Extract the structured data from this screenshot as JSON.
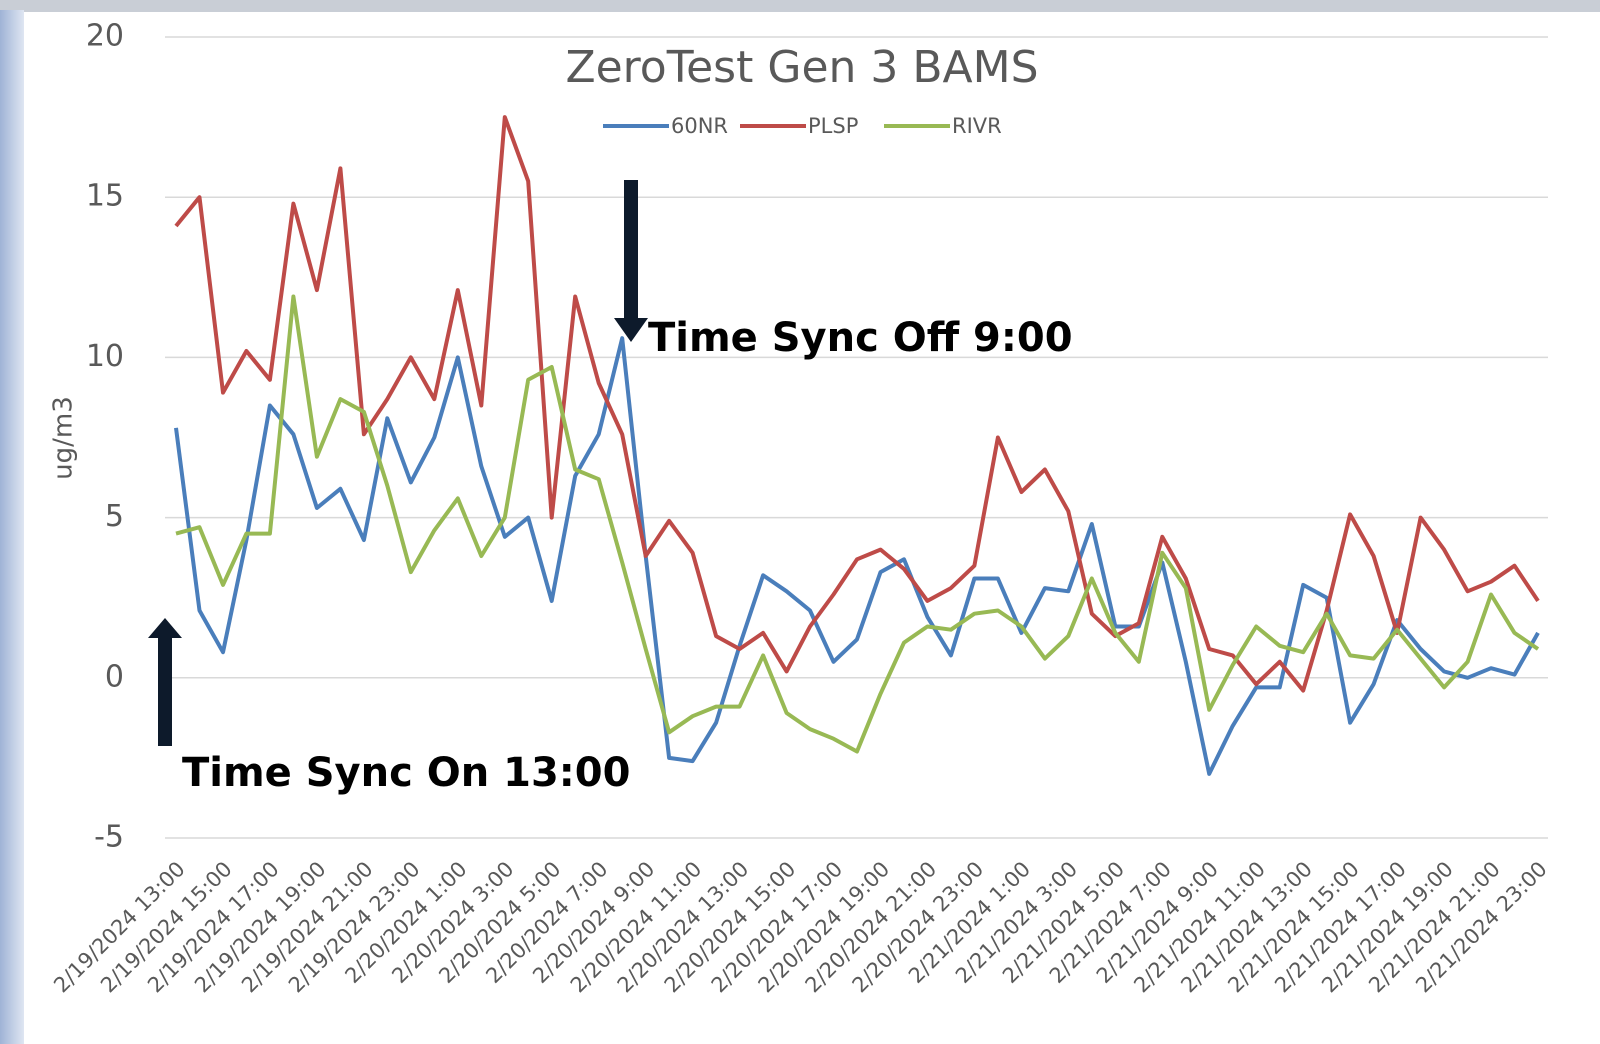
{
  "chart_data": {
    "type": "line",
    "title": "ZeroTest Gen 3 BAMS",
    "y_label": "ug/m3",
    "categories": [
      "2/19/2024 13:00",
      null,
      "2/19/2024 15:00",
      null,
      "2/19/2024 17:00",
      null,
      "2/19/2024 19:00",
      null,
      "2/19/2024 21:00",
      null,
      "2/19/2024 23:00",
      null,
      "2/20/2024 1:00",
      null,
      "2/20/2024 3:00",
      null,
      "2/20/2024 5:00",
      null,
      "2/20/2024 7:00",
      null,
      "2/20/2024 9:00",
      null,
      "2/20/2024 11:00",
      null,
      "2/20/2024 13:00",
      null,
      "2/20/2024 15:00",
      null,
      "2/20/2024 17:00",
      null,
      "2/20/2024 19:00",
      null,
      "2/20/2024 21:00",
      null,
      "2/20/2024 23:00",
      null,
      "2/21/2024 1:00",
      null,
      "2/21/2024 3:00",
      null,
      "2/21/2024 5:00",
      null,
      "2/21/2024 7:00",
      null,
      "2/21/2024 9:00",
      null,
      "2/21/2024 11:00",
      null,
      "2/21/2024 13:00",
      null,
      "2/21/2024 15:00",
      null,
      "2/21/2024 17:00",
      null,
      "2/21/2024 19:00",
      null,
      "2/21/2024 21:00",
      null,
      "2/21/2024 23:00"
    ],
    "series": [
      {
        "name": "60NR",
        "color": "#4a7ebb",
        "values": [
          7.8,
          2.1,
          0.8,
          4.3,
          8.5,
          7.6,
          5.3,
          5.9,
          4.3,
          8.1,
          6.1,
          7.5,
          10.0,
          6.6,
          4.4,
          5.0,
          2.4,
          6.3,
          7.6,
          10.6,
          3.8,
          -2.5,
          -2.6,
          -1.4,
          1.0,
          3.2,
          2.7,
          2.1,
          0.5,
          1.2,
          3.3,
          3.7,
          1.9,
          0.7,
          3.1,
          3.1,
          1.4,
          2.8,
          2.7,
          4.8,
          1.6,
          1.6,
          3.6,
          0.5,
          -3.0,
          -1.5,
          -0.3,
          -0.3,
          2.9,
          2.5,
          -1.4,
          -0.2,
          1.8,
          0.9,
          0.2,
          0.0,
          0.3,
          0.1,
          1.4
        ]
      },
      {
        "name": "PLSP",
        "color": "#be4b48",
        "values": [
          14.1,
          15.0,
          8.9,
          10.2,
          9.3,
          14.8,
          12.1,
          15.9,
          7.6,
          8.7,
          10.0,
          8.7,
          12.1,
          8.5,
          17.5,
          15.5,
          5.0,
          11.9,
          9.2,
          7.6,
          3.8,
          4.9,
          3.9,
          1.3,
          0.9,
          1.4,
          0.2,
          1.6,
          2.6,
          3.7,
          4.0,
          3.4,
          2.4,
          2.8,
          3.5,
          7.5,
          5.8,
          6.5,
          5.2,
          2.0,
          1.3,
          1.7,
          4.4,
          3.1,
          0.9,
          0.7,
          -0.2,
          0.5,
          -0.4,
          2.1,
          5.1,
          3.8,
          1.4,
          5.0,
          4.0,
          2.7,
          3.0,
          3.5,
          2.4
        ]
      },
      {
        "name": "RIVR",
        "color": "#98b954",
        "values": [
          4.5,
          4.7,
          2.9,
          4.5,
          4.5,
          11.9,
          6.9,
          8.7,
          8.3,
          6.0,
          3.3,
          4.6,
          5.6,
          3.8,
          5.0,
          9.3,
          9.7,
          6.5,
          6.2,
          3.6,
          0.9,
          -1.7,
          -1.2,
          -0.9,
          -0.9,
          0.7,
          -1.1,
          -1.6,
          -1.9,
          -2.3,
          -0.5,
          1.1,
          1.6,
          1.5,
          2.0,
          2.1,
          1.6,
          0.6,
          1.3,
          3.1,
          1.4,
          0.5,
          3.9,
          2.8,
          -1.0,
          0.4,
          1.6,
          1.0,
          0.8,
          2.0,
          0.7,
          0.6,
          1.5,
          0.6,
          -0.3,
          0.5,
          2.6,
          1.4,
          0.9
        ]
      }
    ],
    "ylim": [
      -5,
      20
    ],
    "yticks": [
      -5,
      0,
      5,
      10,
      15,
      20
    ],
    "grid": true,
    "legend": "top",
    "annotations": [
      "Time Sync Off 9:00",
      "Time Sync On 13:00"
    ]
  }
}
